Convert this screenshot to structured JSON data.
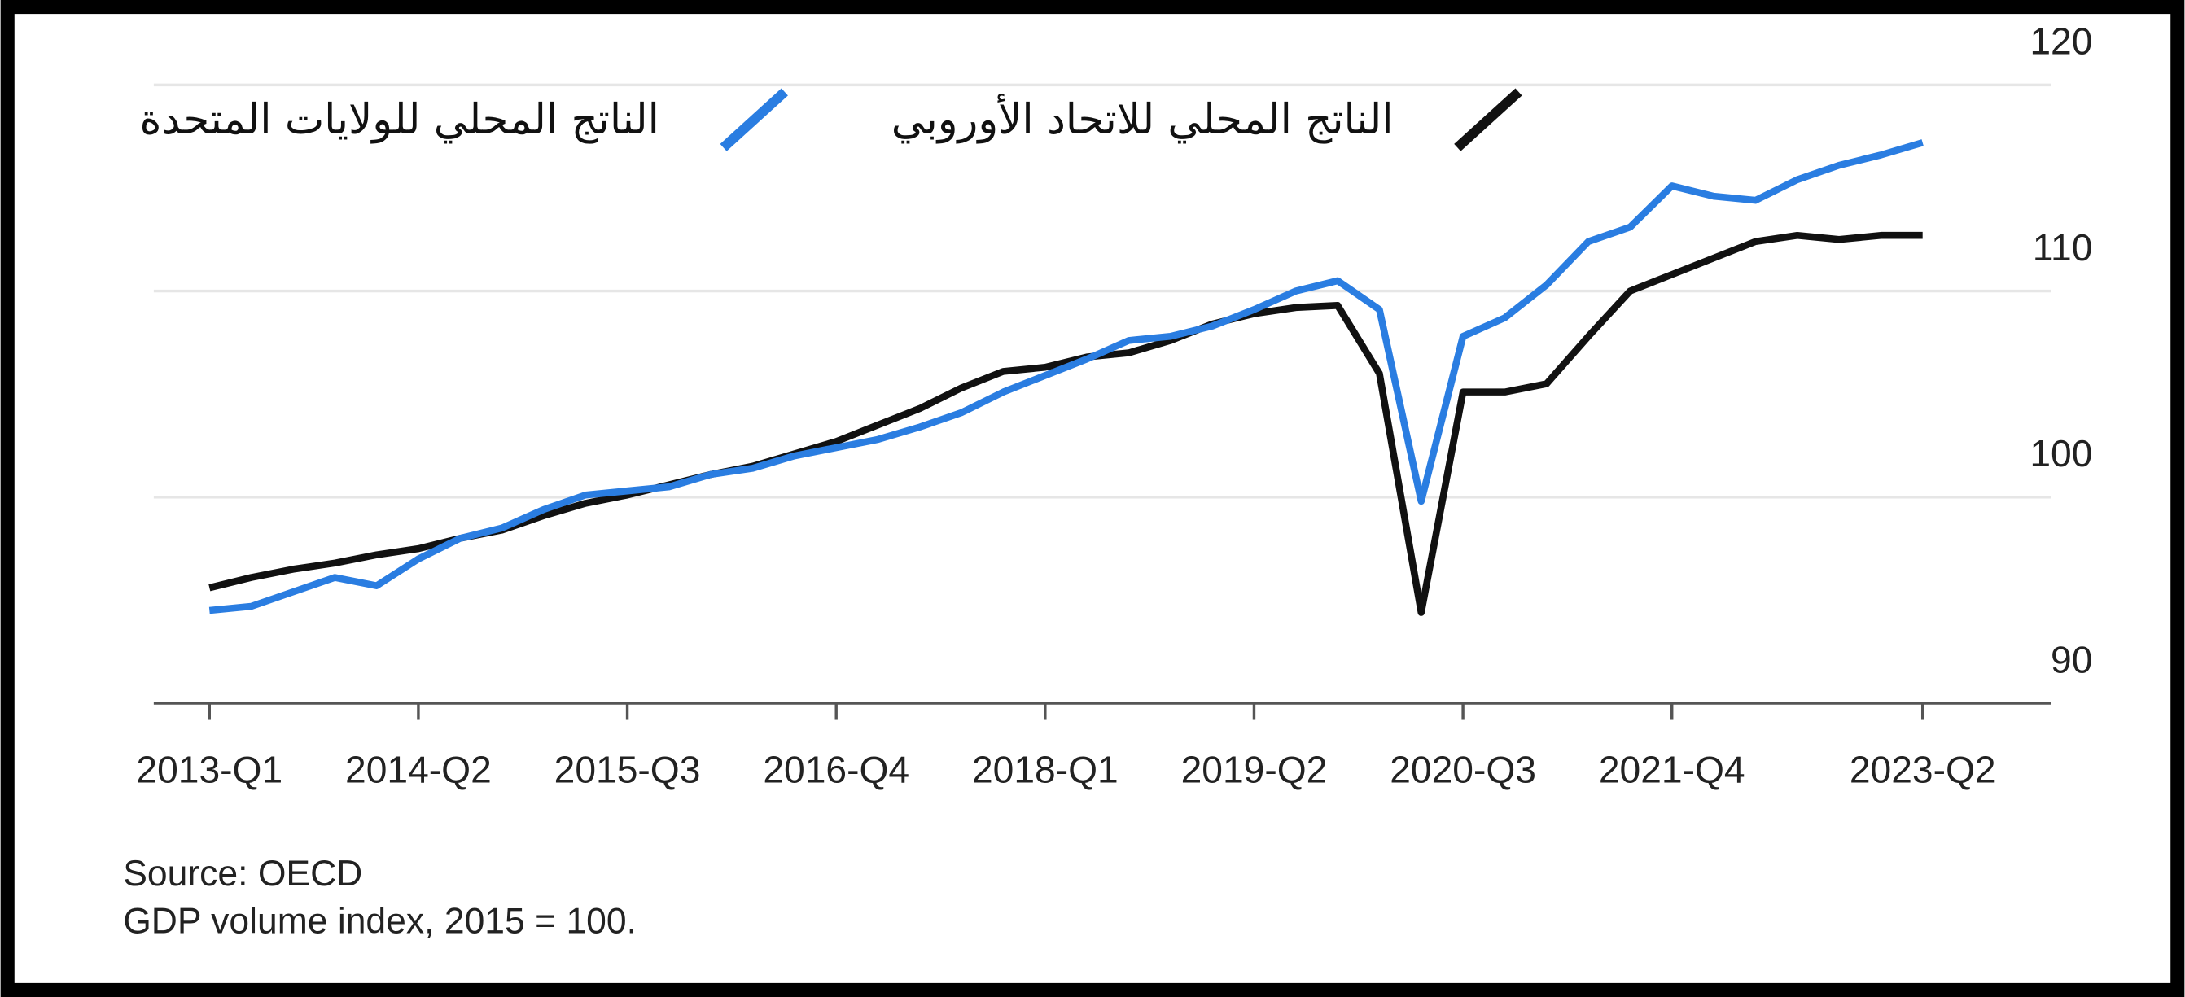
{
  "chart_data": {
    "type": "line",
    "categories": [
      "2013-Q1",
      null,
      null,
      null,
      null,
      "2014-Q2",
      null,
      null,
      null,
      null,
      "2015-Q3",
      null,
      null,
      null,
      null,
      "2016-Q4",
      null,
      null,
      null,
      null,
      "2018-Q1",
      null,
      null,
      null,
      null,
      "2019-Q2",
      null,
      null,
      null,
      null,
      "2020-Q3",
      null,
      null,
      null,
      null,
      "2021-Q4",
      null,
      null,
      null,
      null,
      null,
      "2023-Q2"
    ],
    "series": [
      {
        "name": "الناتج المحلي للاتحاد الأوروبي",
        "color": "#111111",
        "values": [
          95.6,
          96.1,
          96.5,
          96.8,
          97.2,
          97.5,
          98.0,
          98.4,
          99.1,
          99.7,
          100.1,
          100.6,
          101.1,
          101.5,
          102.1,
          102.7,
          103.5,
          104.3,
          105.3,
          106.1,
          106.3,
          106.8,
          107.0,
          107.6,
          108.4,
          108.9,
          109.2,
          109.3,
          106.0,
          94.4,
          105.1,
          105.1,
          105.5,
          107.8,
          110.0,
          110.8,
          111.6,
          112.4,
          112.7,
          112.5,
          112.7,
          112.7
        ]
      },
      {
        "name": "الناتج المحلي للولايات المتحدة",
        "color": "#2a7de1",
        "values": [
          94.5,
          94.7,
          95.4,
          96.1,
          95.7,
          97.0,
          98.0,
          98.5,
          99.4,
          100.1,
          100.3,
          100.5,
          101.1,
          101.4,
          102.0,
          102.4,
          102.8,
          103.4,
          104.1,
          105.1,
          105.9,
          106.7,
          107.6,
          107.8,
          108.3,
          109.1,
          110.0,
          110.5,
          109.1,
          99.8,
          107.8,
          108.7,
          110.3,
          112.4,
          113.1,
          115.1,
          114.6,
          114.4,
          115.4,
          116.1,
          116.6,
          117.2
        ]
      }
    ],
    "ylim": [
      90,
      120
    ],
    "yticks": [
      90,
      100,
      110,
      120
    ],
    "grid": true,
    "source": "Source: OECD",
    "note": "GDP volume index, 2015 = 100."
  }
}
